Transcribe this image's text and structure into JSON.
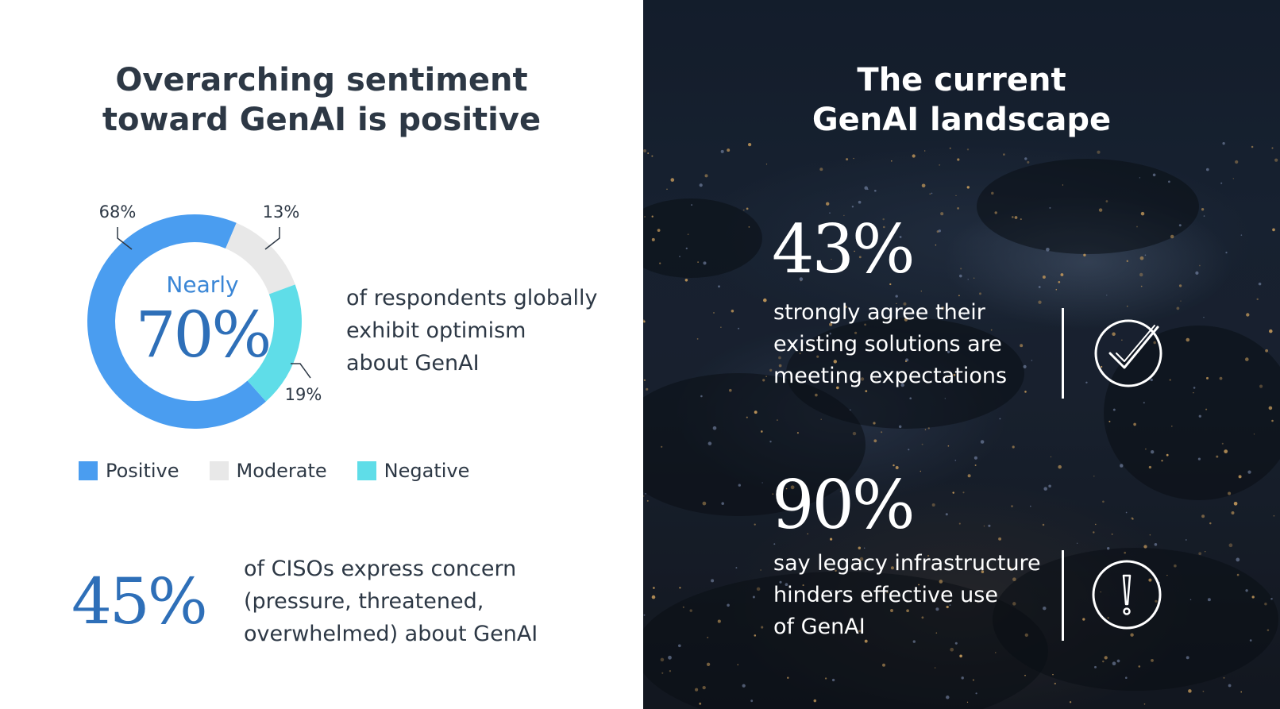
{
  "left": {
    "title_line1": "Overarching sentiment",
    "title_line2": "toward GenAI is positive",
    "donut_center_small": "Nearly",
    "donut_center_big": "70%",
    "optimism_lines": [
      "of respondents globally",
      "exhibit optimism",
      "about GenAI"
    ],
    "big_stat": "45%",
    "concern_lines": [
      "of CISOs express concern",
      "(pressure, threatened,",
      "overwhelmed) about GenAI"
    ]
  },
  "right": {
    "title_line1": "The current",
    "title_line2": "GenAI landscape",
    "stat1_value": "43%",
    "stat1_lines": [
      "strongly agree their",
      "existing solutions are",
      "meeting expectations"
    ],
    "stat1_icon": "checkmark-circle-icon",
    "stat2_value": "90%",
    "stat2_lines": [
      "say legacy infrastructure",
      "hinders effective use",
      "of GenAI"
    ],
    "stat2_icon": "exclamation-circle-icon"
  },
  "chart_data": {
    "type": "pie",
    "variant": "donut",
    "categories": [
      "Positive",
      "Moderate",
      "Negative"
    ],
    "values": [
      68,
      13,
      19
    ],
    "value_labels": [
      "68%",
      "13%",
      "19%"
    ],
    "colors": [
      "#4a9df0",
      "#e8e8e8",
      "#5fdde8"
    ],
    "legend_position": "bottom"
  }
}
